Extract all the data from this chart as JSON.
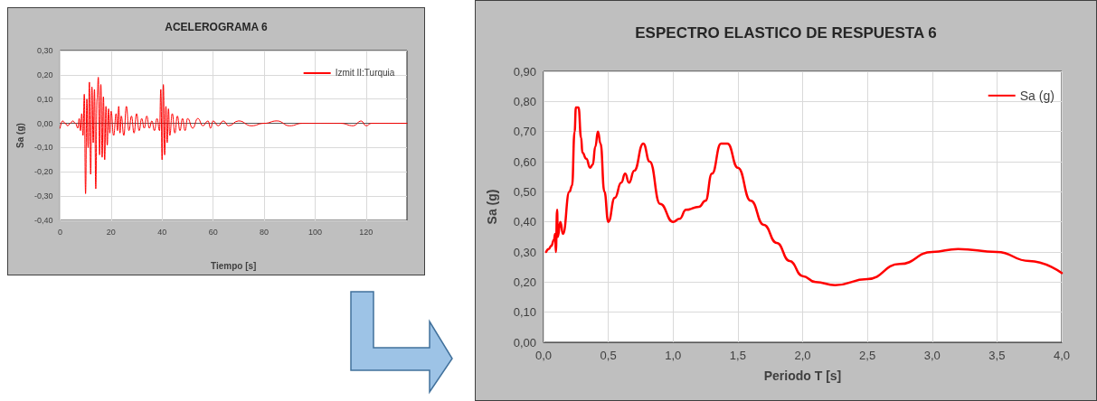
{
  "chart_data": [
    {
      "type": "line",
      "title": "ACELEROGRAMA 6",
      "xlabel": "Tiempo [s]",
      "ylabel": "Sa (g)",
      "legend": "top right",
      "grid": true,
      "marker": "none",
      "line_style": "solid",
      "xlim": [
        0,
        136
      ],
      "xticks": [
        0,
        20,
        40,
        60,
        80,
        100,
        120
      ],
      "ylim": [
        -0.4,
        0.3
      ],
      "yticks": [
        {
          "value": -0.4,
          "label": "-0,40"
        },
        {
          "value": -0.3,
          "label": "-0,30"
        },
        {
          "value": -0.2,
          "label": "-0,20"
        },
        {
          "value": -0.1,
          "label": "-0,10"
        },
        {
          "value": 0,
          "label": "0,00"
        },
        {
          "value": 0.1,
          "label": "0,10"
        },
        {
          "value": 0.2,
          "label": "0,20"
        },
        {
          "value": 0.3,
          "label": "0,30"
        }
      ],
      "series": [
        {
          "name": "Izmit II:Turquia",
          "color": "#ff0000",
          "x": [
            0,
            1,
            2,
            3,
            4,
            5,
            6,
            7,
            7.5,
            8,
            8.5,
            9,
            9.5,
            10,
            10.5,
            11,
            11.5,
            12,
            12.5,
            13,
            13.5,
            14,
            14.5,
            15,
            15.5,
            16,
            16.5,
            17,
            17.5,
            18,
            18.5,
            19,
            19.5,
            20,
            21,
            22,
            22.5,
            23,
            23.5,
            24,
            25,
            26,
            27,
            28,
            29,
            30,
            31,
            32,
            33,
            34,
            35,
            36,
            37,
            38,
            39,
            39.5,
            40,
            40.5,
            41,
            41.5,
            42,
            42.5,
            43,
            44,
            45,
            46,
            47,
            48,
            49,
            50,
            52,
            54,
            56,
            58,
            59,
            60,
            62,
            64,
            66,
            70,
            75,
            80,
            85,
            90,
            95,
            100,
            105,
            110,
            115,
            118,
            120,
            122,
            130,
            136
          ],
          "values": [
            -0.02,
            0.01,
            0,
            -0.01,
            0,
            0.01,
            0,
            -0.02,
            0.02,
            -0.03,
            0.04,
            -0.05,
            0.12,
            -0.29,
            0.1,
            -0.1,
            0.17,
            -0.21,
            0.15,
            -0.08,
            0.14,
            -0.27,
            0.1,
            0.19,
            -0.13,
            0.16,
            -0.14,
            0.11,
            -0.15,
            0.07,
            -0.09,
            0.06,
            -0.04,
            0.05,
            -0.05,
            0.04,
            -0.03,
            0.07,
            -0.04,
            0.03,
            -0.05,
            0.07,
            -0.03,
            0.03,
            -0.04,
            0.04,
            -0.03,
            0.02,
            -0.02,
            0.03,
            -0.02,
            0.01,
            -0.03,
            0.02,
            -0.03,
            0.14,
            -0.15,
            0.16,
            -0.13,
            0.07,
            -0.08,
            0.06,
            -0.05,
            0.04,
            -0.04,
            0.03,
            -0.03,
            0.02,
            -0.03,
            0.02,
            -0.02,
            0.02,
            -0.01,
            0.01,
            -0.02,
            0.01,
            -0.01,
            0.01,
            -0.01,
            0.01,
            -0.01,
            0,
            0.01,
            -0.01,
            0,
            0,
            0,
            0,
            -0.01,
            0.01,
            -0.01,
            0,
            0,
            0
          ]
        }
      ]
    },
    {
      "type": "line",
      "title": "ESPECTRO ELASTICO DE RESPUESTA 6",
      "xlabel": "Periodo T [s]",
      "ylabel": "Sa (g)",
      "legend": "top right",
      "grid": true,
      "marker": "none",
      "line_style": "solid",
      "xlim": [
        0,
        4
      ],
      "xticks": [
        {
          "value": 0,
          "label": "0,0"
        },
        {
          "value": 0.5,
          "label": "0,5"
        },
        {
          "value": 1,
          "label": "1,0"
        },
        {
          "value": 1.5,
          "label": "1,5"
        },
        {
          "value": 2,
          "label": "2,0"
        },
        {
          "value": 2.5,
          "label": "2,5"
        },
        {
          "value": 3,
          "label": "3,0"
        },
        {
          "value": 3.5,
          "label": "3,5"
        },
        {
          "value": 4,
          "label": "4,0"
        }
      ],
      "ylim": [
        0,
        0.9
      ],
      "yticks": [
        {
          "value": 0,
          "label": "0,00"
        },
        {
          "value": 0.1,
          "label": "0,10"
        },
        {
          "value": 0.2,
          "label": "0,20"
        },
        {
          "value": 0.3,
          "label": "0,30"
        },
        {
          "value": 0.4,
          "label": "0,40"
        },
        {
          "value": 0.5,
          "label": "0,50"
        },
        {
          "value": 0.6,
          "label": "0,60"
        },
        {
          "value": 0.7,
          "label": "0,70"
        },
        {
          "value": 0.8,
          "label": "0,80"
        },
        {
          "value": 0.9,
          "label": "0,90"
        }
      ],
      "series": [
        {
          "name": "Sa (g)",
          "color": "#ff0000",
          "x": [
            0.02,
            0.04,
            0.06,
            0.08,
            0.09,
            0.095,
            0.105,
            0.11,
            0.13,
            0.15,
            0.2,
            0.22,
            0.24,
            0.25,
            0.27,
            0.29,
            0.3,
            0.33,
            0.36,
            0.38,
            0.4,
            0.42,
            0.44,
            0.47,
            0.5,
            0.55,
            0.6,
            0.63,
            0.66,
            0.7,
            0.77,
            0.82,
            0.9,
            1,
            1.05,
            1.1,
            1.2,
            1.25,
            1.3,
            1.37,
            1.42,
            1.5,
            1.6,
            1.7,
            1.8,
            1.9,
            2,
            2.1,
            2.25,
            2.5,
            2.75,
            3,
            3.2,
            3.5,
            3.75,
            4
          ],
          "values": [
            0.3,
            0.31,
            0.32,
            0.34,
            0.36,
            0.3,
            0.44,
            0.35,
            0.4,
            0.36,
            0.5,
            0.52,
            0.7,
            0.78,
            0.78,
            0.68,
            0.63,
            0.61,
            0.58,
            0.59,
            0.65,
            0.7,
            0.66,
            0.5,
            0.4,
            0.48,
            0.53,
            0.56,
            0.53,
            0.57,
            0.66,
            0.6,
            0.46,
            0.4,
            0.41,
            0.44,
            0.45,
            0.47,
            0.56,
            0.66,
            0.66,
            0.58,
            0.47,
            0.39,
            0.33,
            0.27,
            0.22,
            0.2,
            0.19,
            0.21,
            0.26,
            0.3,
            0.31,
            0.3,
            0.27,
            0.23
          ]
        }
      ]
    }
  ]
}
